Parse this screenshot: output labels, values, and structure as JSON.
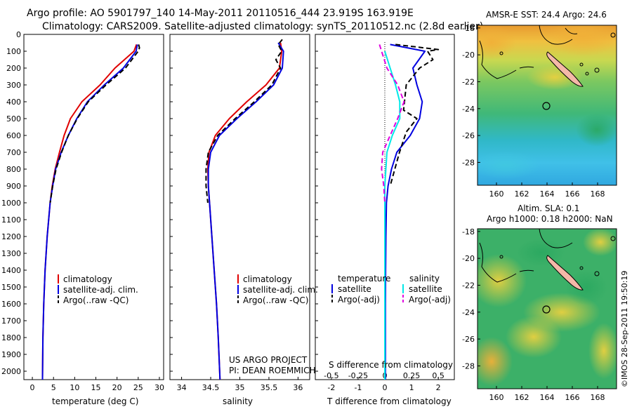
{
  "header": {
    "title_line1": "Argo profile: AO 5901797_140 14-May-2011 20110516_444 23.919S 163.919E",
    "title_line2": "Climatology: CARS2009. Satellite-adjusted climatology: synTS_20110512.nc (2.8d earlier)"
  },
  "colors": {
    "climatology": "#e00000",
    "satellite": "#0000e0",
    "argo": "#000000",
    "salinity_satellite": "#00e8e8",
    "salinity_argo": "#e000e0"
  },
  "chart_data": [
    {
      "type": "line",
      "panel": "temperature",
      "xlabel": "temperature (deg C)",
      "ylabel": "",
      "xlim": [
        -2,
        31
      ],
      "ylim": [
        2050,
        0
      ],
      "xticks": [
        "0",
        "5",
        "10",
        "15",
        "20",
        "25",
        "30"
      ],
      "yticks": [
        "0",
        "100",
        "200",
        "300",
        "400",
        "500",
        "600",
        "700",
        "800",
        "900",
        "1000",
        "1100",
        "1200",
        "1300",
        "1400",
        "1500",
        "1600",
        "1700",
        "1800",
        "1900",
        "2000"
      ],
      "legend": [
        "climatology",
        "satellite-adj. clim.",
        "Argo(..raw -QC)"
      ],
      "series": [
        {
          "name": "climatology",
          "color": "#e00000",
          "depth": [
            60,
            100,
            200,
            300,
            400,
            500,
            600,
            700,
            800,
            900,
            1000,
            1200,
            1400,
            1600,
            1800,
            2050
          ],
          "values": [
            24.6,
            24,
            19.5,
            16,
            11.7,
            9,
            7.5,
            6.4,
            5.4,
            4.7,
            4.2,
            3.5,
            3,
            2.7,
            2.5,
            2.4
          ]
        },
        {
          "name": "satellite-adj. clim.",
          "color": "#0000e0",
          "depth": [
            60,
            100,
            200,
            300,
            400,
            500,
            600,
            700,
            800,
            900,
            1000,
            1200,
            1400,
            1600,
            1800,
            2050
          ],
          "values": [
            24.8,
            24.5,
            21.5,
            17,
            13,
            10.5,
            8.5,
            6.8,
            5.5,
            4.8,
            4.2,
            3.5,
            3,
            2.7,
            2.5,
            2.4
          ]
        },
        {
          "name": "Argo(..raw -QC)",
          "color": "#000000",
          "depth": [
            60,
            80,
            100,
            200,
            300,
            400,
            500,
            600,
            700,
            800,
            900,
            1000
          ],
          "values": [
            25.1,
            25.3,
            25,
            22,
            17.4,
            13.2,
            10.6,
            8.5,
            6.9,
            5.6,
            4.8,
            4.2
          ]
        }
      ]
    },
    {
      "type": "line",
      "panel": "salinity",
      "xlabel": "salinity",
      "ylabel": "",
      "xlim": [
        33.8,
        36.2
      ],
      "ylim": [
        2050,
        0
      ],
      "xticks": [
        "34",
        "34.5",
        "35",
        "35.5",
        "36"
      ],
      "legend": [
        "climatology",
        "satellite-adj. clim.",
        "Argo(..raw -QC)"
      ],
      "annotations": [
        "US ARGO PROJECT",
        "PI: DEAN ROEMMICH"
      ],
      "series": [
        {
          "name": "climatology",
          "color": "#e00000",
          "depth": [
            50,
            100,
            200,
            300,
            400,
            500,
            600,
            700,
            800,
            900,
            1000,
            1200,
            1400,
            1600,
            1800,
            2050
          ],
          "values": [
            35.7,
            35.72,
            35.68,
            35.45,
            35.12,
            34.82,
            34.58,
            34.47,
            34.45,
            34.46,
            34.48,
            34.52,
            34.56,
            34.6,
            34.63,
            34.66
          ]
        },
        {
          "name": "satellite-adj. clim.",
          "color": "#0000e0",
          "depth": [
            50,
            100,
            200,
            300,
            400,
            500,
            600,
            700,
            800,
            900,
            1000,
            1200,
            1400,
            1600,
            1800,
            2050
          ],
          "values": [
            35.66,
            35.75,
            35.73,
            35.58,
            35.28,
            34.95,
            34.65,
            34.5,
            34.46,
            34.46,
            34.48,
            34.52,
            34.56,
            34.6,
            34.63,
            34.66
          ]
        },
        {
          "name": "Argo(..raw -QC)",
          "color": "#000000",
          "depth": [
            30,
            60,
            100,
            150,
            200,
            300,
            400,
            500,
            600,
            700,
            800,
            900,
            1000
          ],
          "values": [
            35.73,
            35.66,
            35.72,
            35.62,
            35.7,
            35.55,
            35.25,
            34.92,
            34.62,
            34.46,
            34.42,
            34.42,
            34.45
          ]
        }
      ]
    },
    {
      "type": "line",
      "panel": "difference",
      "xlabel": "T difference from climatology",
      "top_xlabel": "S difference from climatology",
      "xlim": [
        -2.6,
        2.6
      ],
      "ylim": [
        2050,
        0
      ],
      "xticks": [
        "-2",
        "-1",
        "0",
        "1",
        "2"
      ],
      "top_xticks": [
        "-0.5",
        "-0.25",
        "0",
        "0.25",
        "0.5"
      ],
      "legend_temperature_title": "temperature",
      "legend_salinity_title": "salinity",
      "legend_temperature": [
        "satellite",
        "Argo(-adj)"
      ],
      "legend_salinity": [
        "satellite",
        "Argo(-adj)"
      ],
      "series": [
        {
          "name": "temperature satellite",
          "color": "#0000e0",
          "depth": [
            60,
            100,
            200,
            300,
            400,
            500,
            600,
            700,
            800,
            900,
            1000,
            1200,
            1400,
            1600,
            1800,
            2050
          ],
          "values": [
            0.2,
            1.5,
            1.05,
            1.2,
            1.4,
            1.3,
            0.95,
            0.45,
            0.25,
            0.12,
            0.06,
            0.04,
            0.03,
            0.02,
            0.02,
            0.02
          ]
        },
        {
          "name": "temperature Argo(-adj)",
          "color": "#000000",
          "depth": [
            60,
            90,
            100,
            150,
            200,
            300,
            450,
            500,
            580,
            700,
            900
          ],
          "values": [
            0.4,
            2,
            1.6,
            1.8,
            1.3,
            0.8,
            0.7,
            1.2,
            0.8,
            0.55,
            0.2
          ]
        },
        {
          "name": "salinity satellite",
          "color": "#00e8e8",
          "depth": [
            100,
            200,
            300,
            400,
            500,
            600,
            700,
            800,
            900,
            1000,
            1200,
            1400,
            1600,
            1800,
            2050
          ],
          "values": [
            0,
            0.05,
            0.1,
            0.14,
            0.14,
            0.07,
            0.02,
            0.01,
            0,
            0,
            0,
            0,
            0,
            0,
            0
          ]
        },
        {
          "name": "salinity Argo(-adj)",
          "color": "#e000e0",
          "depth": [
            60,
            100,
            200,
            300,
            400,
            500,
            600,
            700,
            800,
            900,
            1000
          ],
          "values": [
            -0.05,
            -0.03,
            0.02,
            0.12,
            0.18,
            0.12,
            0.05,
            -0.02,
            -0.03,
            -0.01,
            0
          ]
        }
      ]
    },
    {
      "type": "heatmap",
      "panel": "sst_map",
      "title": "AMSR-E SST: 24.4  Argo: 24.6",
      "xticks": [
        "160",
        "162",
        "164",
        "166",
        "168"
      ],
      "yticks": [
        "-18",
        "-20",
        "-22",
        "-24",
        "-26",
        "-28"
      ],
      "xlim": [
        158.5,
        169.5
      ],
      "ylim": [
        -29.7,
        -17.8
      ],
      "argo_position": {
        "lon": 163.919,
        "lat": -23.919
      }
    },
    {
      "type": "heatmap",
      "panel": "sla_map",
      "title_line1": "Altim. SLA: 0.1",
      "title_line2": "Argo h1000: 0.18 h2000: NaN",
      "xticks": [
        "160",
        "162",
        "164",
        "166",
        "168"
      ],
      "yticks": [
        "-18",
        "-20",
        "-22",
        "-24",
        "-26",
        "-28"
      ],
      "xlim": [
        158.5,
        169.5
      ],
      "ylim": [
        -29.7,
        -17.8
      ],
      "argo_position": {
        "lon": 163.919,
        "lat": -23.919
      }
    }
  ],
  "footer": {
    "credit": "©IMOS 28-Sep-2011 19:50:19"
  }
}
